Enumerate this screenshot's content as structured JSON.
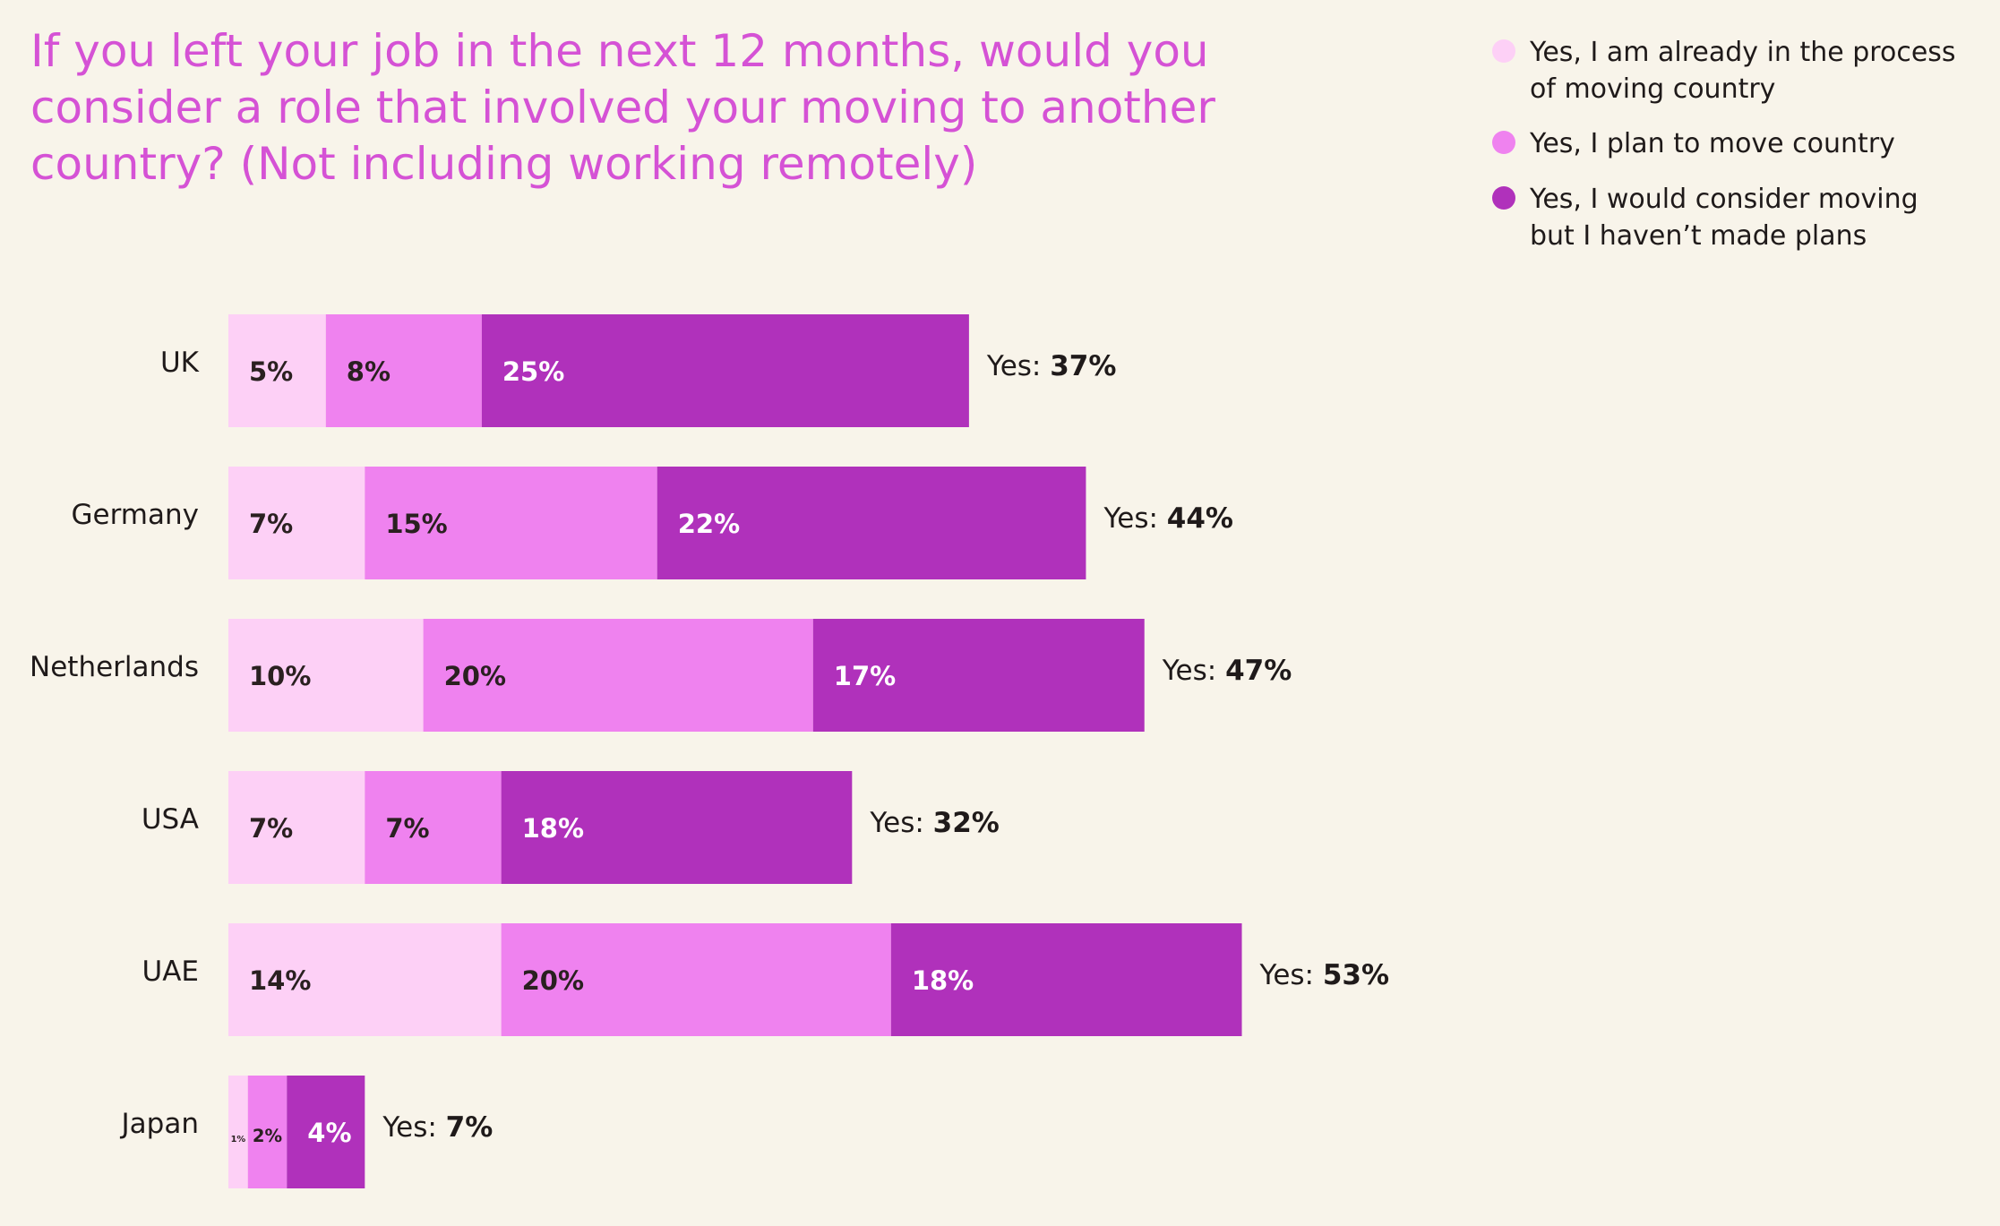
{
  "chart_data": {
    "type": "bar",
    "orientation": "horizontal",
    "stacked": true,
    "title": "If you left your job in the next 12 months, would you consider a role that involved your moving to another country? (Not including working remotely)",
    "title_lines": [
      "If you left your job in the next 12 months, would you",
      "consider a role that involved your moving to another",
      "country? (Not including working remotely)"
    ],
    "categories": [
      "UK",
      "Germany",
      "Netherlands",
      "USA",
      "UAE",
      "Japan"
    ],
    "series": [
      {
        "name": "Yes, I am already in the process of moving country",
        "legend_lines": [
          "Yes, I am already in the process",
          "of moving country"
        ],
        "color": "#fdd0f6",
        "label_color": "#2a2020",
        "values": [
          5,
          7,
          10,
          7,
          14,
          1
        ],
        "labels": [
          "5%",
          "7%",
          "10%",
          "7%",
          "14%",
          "1%"
        ]
      },
      {
        "name": "Yes, I plan to move country",
        "legend_lines": [
          "Yes, I plan to move country"
        ],
        "color": "#ef82ef",
        "label_color": "#2a2020",
        "values": [
          8,
          15,
          20,
          7,
          20,
          2
        ],
        "labels": [
          "8%",
          "15%",
          "20%",
          "7%",
          "20%",
          "2%"
        ]
      },
      {
        "name": "Yes, I would consider moving but I haven’t made plans",
        "legend_lines": [
          "Yes, I would consider moving",
          "but I haven’t made plans"
        ],
        "color": "#b031bb",
        "label_color": "#ffffff",
        "values": [
          25,
          22,
          17,
          18,
          18,
          4
        ],
        "labels": [
          "25%",
          "22%",
          "17%",
          "18%",
          "18%",
          "4%"
        ]
      }
    ],
    "total_prefix": "Yes: ",
    "totals": [
      37,
      44,
      47,
      32,
      53,
      7
    ],
    "total_labels": [
      "37%",
      "44%",
      "47%",
      "32%",
      "53%",
      "7%"
    ],
    "legend_position": "top-right",
    "xlim": [
      0,
      53
    ],
    "grid": false,
    "xlabel": "",
    "ylabel": "",
    "colors": {
      "background": "#f8f4ea",
      "title": "#d552d5",
      "text": "#1f1a1a"
    }
  }
}
